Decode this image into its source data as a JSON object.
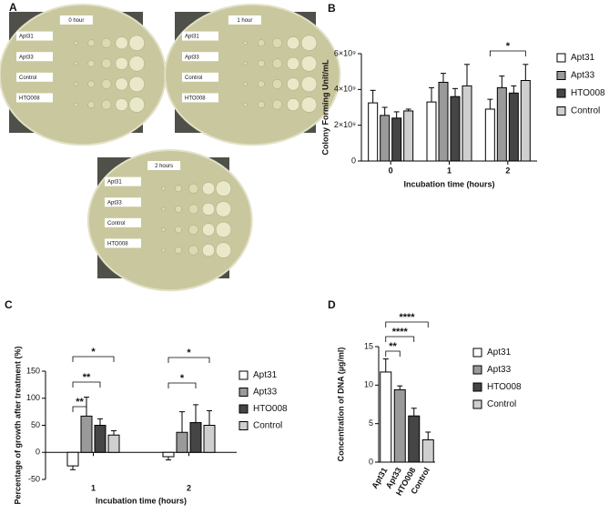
{
  "panel_a": {
    "label": "A",
    "plates": [
      {
        "time": "0 hour",
        "strains": [
          "Apt31",
          "Apt33",
          "Control",
          "HTO008"
        ]
      },
      {
        "time": "1 hour",
        "strains": [
          "Apt31",
          "Apt33",
          "Control",
          "HTO008"
        ]
      },
      {
        "time": "2 hours",
        "strains": [
          "Apt31",
          "Apt33",
          "Control",
          "HTO008"
        ]
      }
    ]
  },
  "chart_data": [
    {
      "type": "bar",
      "panel_label": "B",
      "x_label": "Incubation time (hours)",
      "y_label": "Colony Forming Unit/mL",
      "categories": [
        "0",
        "1",
        "2"
      ],
      "series": [
        {
          "name": "Apt31",
          "color": "#ffffff",
          "values": [
            3250000000,
            3300000000,
            2900000000
          ],
          "errors": [
            700000000,
            800000000,
            550000000
          ]
        },
        {
          "name": "Apt33",
          "color": "#9a9a9a",
          "values": [
            2550000000,
            4400000000,
            4100000000
          ],
          "errors": [
            450000000,
            500000000,
            650000000
          ]
        },
        {
          "name": "HTO008",
          "color": "#454545",
          "values": [
            2400000000,
            3600000000,
            3800000000
          ],
          "errors": [
            350000000,
            450000000,
            400000000
          ]
        },
        {
          "name": "Control",
          "color": "#cfcfcf",
          "values": [
            2800000000,
            4200000000,
            4500000000
          ],
          "errors": [
            100000000,
            1200000000,
            900000000
          ]
        }
      ],
      "ylim": [
        0,
        6000000000
      ],
      "yticks": [
        0,
        {
          "value": 2000000000,
          "label": "2×10⁹"
        },
        {
          "value": 4000000000,
          "label": "4×10⁹"
        },
        {
          "value": 6000000000,
          "label": "6×10⁹"
        }
      ],
      "annotations": [
        {
          "text": "*",
          "at": "2",
          "from": "Apt31",
          "to": "Control"
        }
      ]
    },
    {
      "type": "bar",
      "panel_label": "C",
      "x_label": "Incubation time (hours)",
      "y_label": "Percentage of growth after treatment (%)",
      "categories": [
        "1",
        "2"
      ],
      "series": [
        {
          "name": "Apt31",
          "color": "#ffffff",
          "values": [
            -25,
            -8
          ],
          "errors": [
            7,
            6
          ]
        },
        {
          "name": "Apt33",
          "color": "#9a9a9a",
          "values": [
            67,
            37
          ],
          "errors": [
            35,
            38
          ]
        },
        {
          "name": "HTO008",
          "color": "#454545",
          "values": [
            50,
            55
          ],
          "errors": [
            12,
            33
          ]
        },
        {
          "name": "Control",
          "color": "#cfcfcf",
          "values": [
            32,
            50
          ],
          "errors": [
            8,
            27
          ]
        }
      ],
      "ylim": [
        -50,
        150
      ],
      "yticks": [
        -50,
        0,
        50,
        100,
        150
      ],
      "annotations": [
        {
          "text": "**",
          "at": "1",
          "from": "Apt31",
          "to": "Apt33"
        },
        {
          "text": "**",
          "at": "1",
          "from": "Apt31",
          "to": "HTO008"
        },
        {
          "text": "*",
          "at": "1",
          "from": "Apt31",
          "to": "Control"
        },
        {
          "text": "*",
          "at": "2",
          "from": "Apt31",
          "to": "HTO008"
        },
        {
          "text": "*",
          "at": "2",
          "from": "Apt31",
          "to": "Control"
        }
      ]
    },
    {
      "type": "single-bar",
      "panel_label": "D",
      "y_label": "Concentration of DNA (µg/ml)",
      "categories": [
        "Apt31",
        "Apt33",
        "HTO008",
        "Control"
      ],
      "colors": [
        "#ffffff",
        "#9a9a9a",
        "#454545",
        "#cfcfcf"
      ],
      "values": [
        11.7,
        9.4,
        6.0,
        2.9
      ],
      "errors": [
        1.7,
        0.5,
        1.0,
        1.0
      ],
      "ylim": [
        0,
        15
      ],
      "yticks": [
        0,
        5,
        10,
        15
      ],
      "annotations": [
        {
          "text": "**",
          "from": "Apt31",
          "to": "Apt33"
        },
        {
          "text": "****",
          "from": "Apt31",
          "to": "HTO008"
        },
        {
          "text": "****",
          "from": "Apt31",
          "to": "Control"
        }
      ]
    }
  ]
}
